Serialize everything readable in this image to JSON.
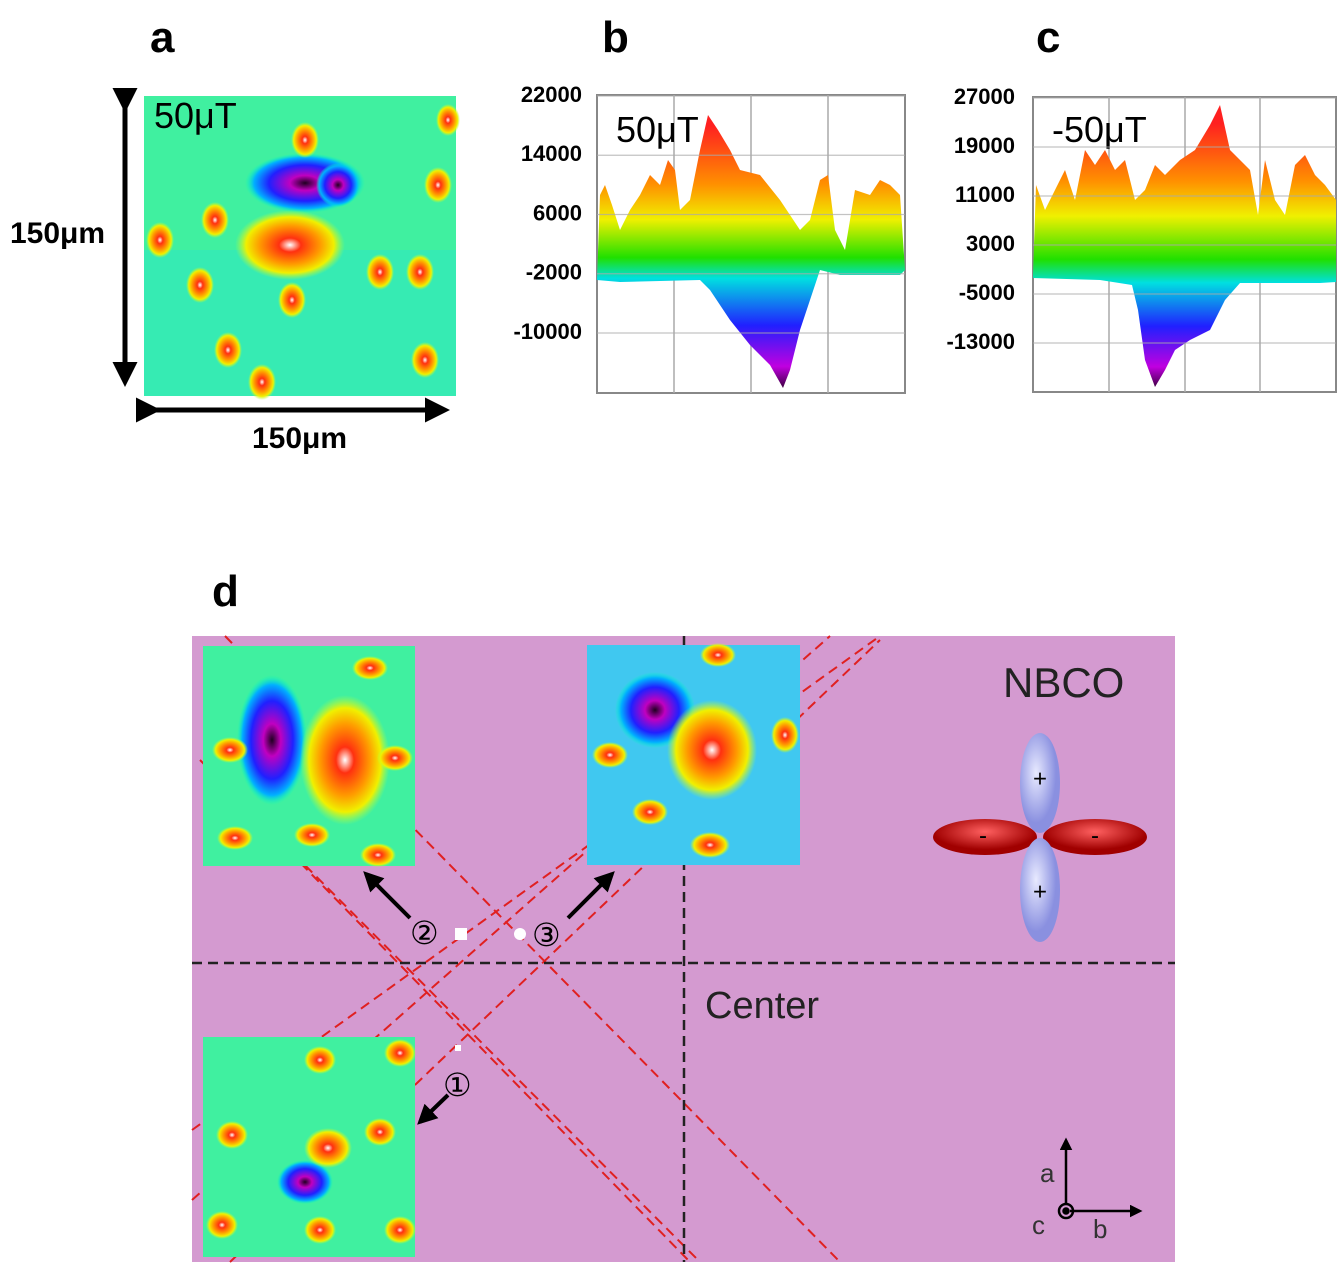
{
  "panels": {
    "a": {
      "label": "a",
      "field": "50μT",
      "height": "150μm",
      "width": "150μm"
    },
    "b": {
      "label": "b",
      "field": "50μT",
      "yticks": [
        22000,
        14000,
        6000,
        -2000,
        -10000
      ]
    },
    "c": {
      "label": "c",
      "field": "-50μT",
      "yticks": [
        27000,
        19000,
        11000,
        3000,
        -5000,
        -13000
      ]
    },
    "d": {
      "label": "d",
      "material": "NBCO",
      "center": "Center",
      "sites": [
        "①",
        "②",
        "③"
      ],
      "lobes": [
        "+",
        "+",
        "-",
        "-"
      ],
      "axes": {
        "a": "a",
        "b": "b",
        "c": "c"
      }
    }
  }
}
